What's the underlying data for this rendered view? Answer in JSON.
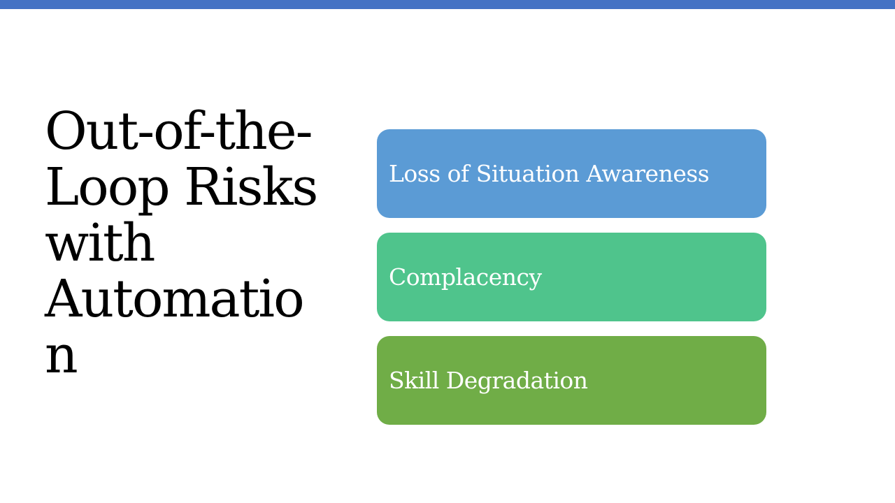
{
  "slide": {
    "title": "Out-of-the-\nLoop Risks\nwith\nAutomatio\nn",
    "accent_color": "#4472c4",
    "items": [
      {
        "label": "Loss of Situation Awareness",
        "color": "#5b9bd5"
      },
      {
        "label": "Complacency",
        "color": "#4fc48c"
      },
      {
        "label": "Skill Degradation",
        "color": "#70ad47"
      }
    ]
  }
}
